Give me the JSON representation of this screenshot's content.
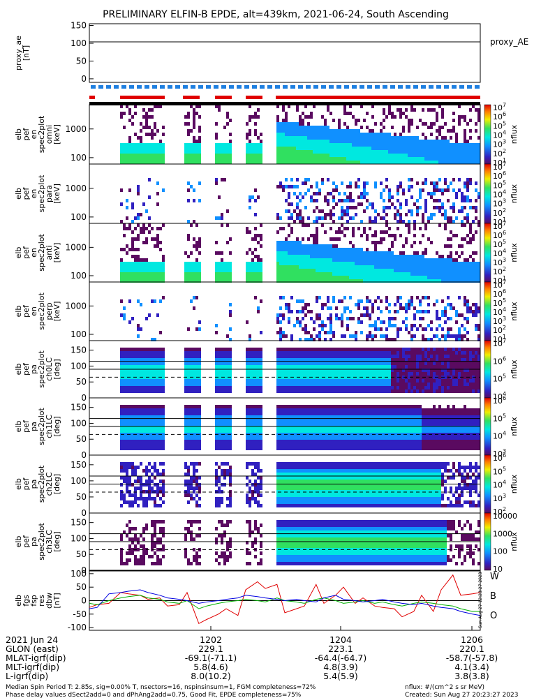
{
  "title": "PRELIMINARY ELFIN-B EPDE, alt=439km, 2021-06-24, South Ascending",
  "chart_data": {
    "type": "heatmap",
    "panels": [
      {
        "id": "proxy_ae",
        "type": "line",
        "ylabel": [
          "proxy_ae",
          "[nT]"
        ],
        "yticks": [
          "150",
          "100",
          "50",
          "0"
        ],
        "ylim": [
          -10,
          155
        ],
        "legend": "proxy_AE",
        "x": [
          0,
          1
        ],
        "values": [
          104,
          104
        ]
      },
      {
        "id": "en-omni",
        "type": "heatmap",
        "ylabel": [
          "elb",
          "pef",
          "en",
          "spec2plot",
          "omni",
          "[keV]"
        ],
        "ytick_labels": [
          "1000",
          "100"
        ],
        "yscale": "log",
        "ylim": [
          60,
          7000
        ],
        "cbar_ticks": [
          "10^7",
          "10^6",
          "10^5",
          "10^4",
          "10^3",
          "10^2",
          "10^1"
        ],
        "zlabel": "nflux"
      },
      {
        "id": "en-para",
        "type": "heatmap",
        "ylabel": [
          "elb",
          "pef",
          "en",
          "spec2plot",
          "para",
          "[keV]"
        ],
        "ytick_labels": [
          "1000",
          "100"
        ],
        "yscale": "log",
        "ylim": [
          60,
          7000
        ],
        "cbar_ticks": [
          "10^7",
          "10^6",
          "10^5",
          "10^4",
          "10^3",
          "10^2",
          "10^1"
        ],
        "zlabel": "nflux"
      },
      {
        "id": "en-anti",
        "type": "heatmap",
        "ylabel": [
          "elb",
          "pef",
          "en",
          "spec2plot",
          "anti",
          "[keV]"
        ],
        "ytick_labels": [
          "1000",
          "100"
        ],
        "yscale": "log",
        "ylim": [
          60,
          7000
        ],
        "cbar_ticks": [
          "10^7",
          "10^6",
          "10^5",
          "10^4",
          "10^3",
          "10^2",
          "10^1"
        ],
        "zlabel": "nflux"
      },
      {
        "id": "en-perp",
        "type": "heatmap",
        "ylabel": [
          "elb",
          "pef",
          "en",
          "spec2plot",
          "perp",
          "[keV]"
        ],
        "ytick_labels": [
          "1000",
          "100"
        ],
        "yscale": "log",
        "ylim": [
          60,
          7000
        ],
        "cbar_ticks": [
          "10^7",
          "10^6",
          "10^5",
          "10^4",
          "10^3",
          "10^2",
          "10^1"
        ],
        "zlabel": "nflux"
      },
      {
        "id": "ch0LC",
        "type": "heatmap",
        "ylabel": [
          "elb",
          "pef",
          "pa",
          "spec2plot",
          "ch0LC",
          "[deg]"
        ],
        "ytick_labels": [
          "150",
          "100",
          "50",
          "0"
        ],
        "ylim": [
          0,
          180
        ],
        "cbar_ticks": [
          "10^7",
          "10^6",
          "10^5",
          "10^4"
        ],
        "zlabel": "nflux"
      },
      {
        "id": "ch1LC",
        "type": "heatmap",
        "ylabel": [
          "elb",
          "pef",
          "pa",
          "spec2plot",
          "ch1LC",
          "[deg]"
        ],
        "ytick_labels": [
          "150",
          "100",
          "50",
          "0"
        ],
        "ylim": [
          0,
          180
        ],
        "cbar_ticks": [
          "10^6",
          "10^5",
          "10^4",
          "10^3"
        ],
        "zlabel": "nflux"
      },
      {
        "id": "ch2LC",
        "type": "heatmap",
        "ylabel": [
          "elb",
          "pef",
          "pa",
          "spec2plot",
          "ch2LC",
          "[deg]"
        ],
        "ytick_labels": [
          "150",
          "100",
          "50",
          "0"
        ],
        "ylim": [
          0,
          180
        ],
        "cbar_ticks": [
          "10^6",
          "10^5",
          "10^4",
          "10^3",
          "10^2"
        ],
        "zlabel": "nflux"
      },
      {
        "id": "ch3LC",
        "type": "heatmap",
        "ylabel": [
          "elb",
          "pef",
          "pa",
          "spec2plot",
          "ch3LC",
          "[deg]"
        ],
        "ytick_labels": [
          "150",
          "100",
          "50",
          "0"
        ],
        "ylim": [
          0,
          180
        ],
        "cbar_ticks": [
          "10000",
          "1000",
          "100",
          "10"
        ],
        "zlabel": "nflux"
      },
      {
        "id": "dbw",
        "type": "line",
        "ylabel": [
          "elb",
          "fgs",
          "fsp",
          "res",
          "dbw",
          "[nT]"
        ],
        "yticks": [
          "100",
          "50",
          "0",
          "-50",
          "-100"
        ],
        "ylim": [
          -110,
          110
        ],
        "legend": [
          "W",
          "B",
          "O"
        ],
        "x": [
          0.0,
          0.02,
          0.05,
          0.08,
          0.1,
          0.13,
          0.15,
          0.18,
          0.2,
          0.23,
          0.25,
          0.28,
          0.3,
          0.33,
          0.35,
          0.38,
          0.4,
          0.43,
          0.45,
          0.48,
          0.5,
          0.53,
          0.55,
          0.58,
          0.6,
          0.63,
          0.65,
          0.68,
          0.7,
          0.73,
          0.75,
          0.78,
          0.8,
          0.83,
          0.85,
          0.88,
          0.9,
          0.93,
          0.95,
          0.98,
          1.0
        ],
        "series": [
          {
            "name": "W",
            "values": [
              -25,
              -15,
              -10,
              30,
              25,
              20,
              5,
              10,
              -20,
              -15,
              30,
              -85,
              -70,
              -50,
              -30,
              -55,
              40,
              70,
              45,
              60,
              -45,
              -30,
              -20,
              60,
              -10,
              20,
              50,
              -10,
              10,
              -20,
              -25,
              -30,
              -60,
              -40,
              20,
              -40,
              40,
              95,
              20,
              25,
              30
            ]
          },
          {
            "name": "B",
            "values": [
              -10,
              -15,
              0,
              10,
              15,
              20,
              10,
              5,
              -5,
              -10,
              0,
              -30,
              -20,
              -10,
              -5,
              0,
              5,
              0,
              -5,
              10,
              0,
              -5,
              -10,
              5,
              10,
              0,
              -10,
              -5,
              0,
              -10,
              -5,
              -15,
              -20,
              -10,
              -5,
              -10,
              -15,
              -20,
              -30,
              -40,
              -40
            ]
          },
          {
            "name": "O",
            "values": [
              -30,
              -25,
              25,
              30,
              35,
              40,
              30,
              20,
              10,
              5,
              0,
              -10,
              -5,
              0,
              5,
              10,
              20,
              15,
              10,
              5,
              0,
              5,
              0,
              -5,
              10,
              20,
              5,
              0,
              -5,
              0,
              5,
              -5,
              -10,
              -15,
              -10,
              -20,
              -25,
              -30,
              -40,
              -50,
              -55
            ]
          }
        ]
      }
    ],
    "x_ticks": [
      "1202",
      "1204",
      "1206"
    ],
    "cbar_zlabel": "nflux"
  },
  "footer": {
    "rows": [
      {
        "label": "2021 Jun 24",
        "v1": "1202",
        "v2": "1204",
        "v3": "1206"
      },
      {
        "label": "GLON (east)",
        "v1": "229.1",
        "v2": "223.1",
        "v3": "220.1"
      },
      {
        "label": "MLAT-igrf(dip)",
        "v1": "-69.1(-71.1)",
        "v2": "-64.4(-64.7)",
        "v3": "-58.7(-57.8)"
      },
      {
        "label": "MLT-igrf(dip)",
        "v1": "5.8(4.6)",
        "v2": "4.8(3.9)",
        "v3": "4.1(3.4)"
      },
      {
        "label": "L-igrf(dip)",
        "v1": "8.0(10.2)",
        "v2": "5.4(5.9)",
        "v3": "3.8(3.8)"
      }
    ],
    "note1_left": "Median Spin Period T: 2.85s, sig=0.00% T, nsectors=16, nspinsinsum=1, FGM completeness=72%",
    "note2_left": "Phase delay values dSect2add=0 and dPhAng2add=0.75, Good Fit, EPDE completeness=75%",
    "note1_right": "nflux: #/(cm^2 s sr MeV)",
    "note2_right": "Created: Sun Aug 27 20:23:27 2023",
    "side_stamp": "Sun Aug 27 12:23:27 2023"
  },
  "colors": {
    "red_bar": "#e00000",
    "blue_bar": "#1e7fe0",
    "W": "#e00000",
    "B": "#00b000",
    "O": "#0000e0"
  }
}
